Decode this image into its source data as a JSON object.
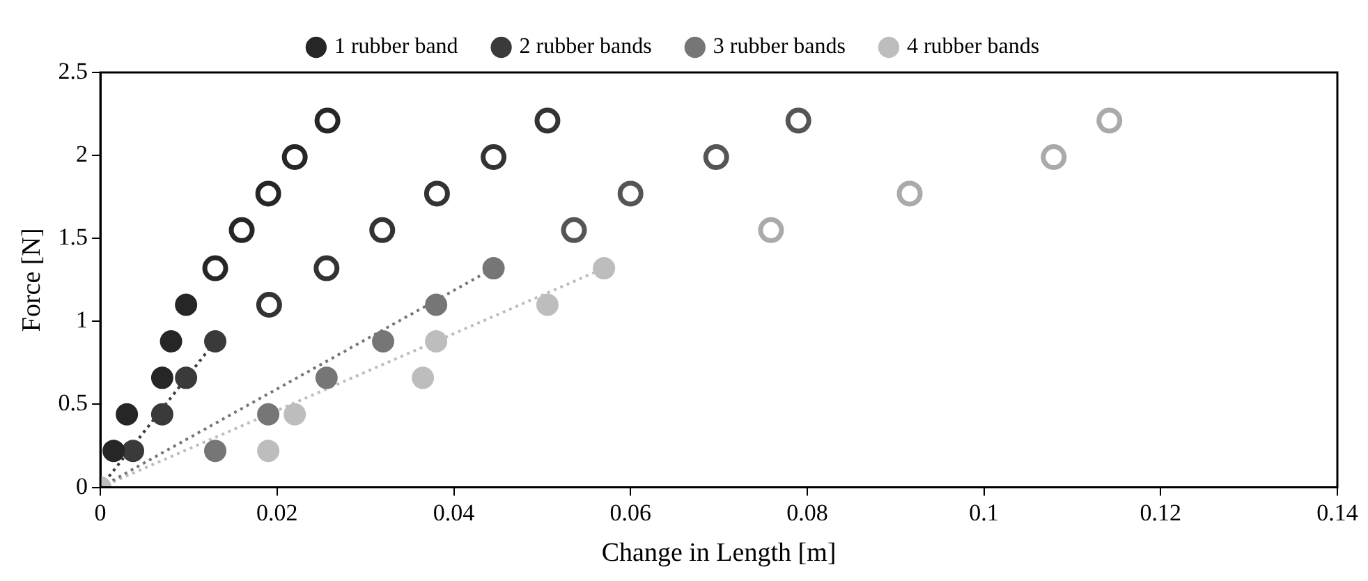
{
  "chart_data": {
    "type": "scatter",
    "xlabel": "Change in Length [m]",
    "ylabel": "Force [N]",
    "xlim": [
      0,
      0.14
    ],
    "ylim": [
      0,
      2.5
    ],
    "xticks": [
      0,
      0.02,
      0.04,
      0.06,
      0.08,
      0.1,
      0.12,
      0.14
    ],
    "yticks": [
      0,
      0.5,
      1,
      1.5,
      2,
      2.5
    ],
    "grid": false,
    "legend": "top",
    "marker": "circle",
    "series": [
      {
        "name": "1 rubber band",
        "color": "#262626",
        "x": [
          0.0015,
          0.003,
          0.007,
          0.008,
          0.0097
        ],
        "values": [
          0.22,
          0.44,
          0.66,
          0.88,
          1.1
        ]
      },
      {
        "name": "2 rubber bands",
        "color": "#3a3a3a",
        "x": [
          0.0037,
          0.007,
          0.0097,
          0.013
        ],
        "values": [
          0.22,
          0.44,
          0.66,
          0.88
        ]
      },
      {
        "name": "3 rubber bands",
        "color": "#767676",
        "x": [
          0.013,
          0.019,
          0.0256,
          0.032,
          0.038,
          0.0445
        ],
        "values": [
          0.22,
          0.44,
          0.66,
          0.88,
          1.1,
          1.32
        ]
      },
      {
        "name": "4 rubber bands",
        "color": "#bdbdbd",
        "x": [
          0,
          0.019,
          0.022,
          0.0365,
          0.038,
          0.0506,
          0.057
        ],
        "values": [
          0,
          0.22,
          0.44,
          0.66,
          0.88,
          1.1,
          1.32
        ]
      },
      {
        "color": "#262626",
        "marker": "circle_open",
        "x": [
          0.013,
          0.016,
          0.019,
          0.022,
          0.0257
        ],
        "values": [
          1.32,
          1.55,
          1.77,
          1.99,
          2.21
        ]
      },
      {
        "color": "#333333",
        "marker": "circle_open",
        "x": [
          0.0191,
          0.0256,
          0.0319,
          0.0381,
          0.0445,
          0.0506
        ],
        "values": [
          1.1,
          1.32,
          1.55,
          1.77,
          1.99,
          2.21
        ]
      },
      {
        "color": "#555555",
        "marker": "circle_open",
        "x": [
          0.0536,
          0.06,
          0.0697,
          0.079
        ],
        "values": [
          1.55,
          1.77,
          1.99,
          2.21
        ]
      },
      {
        "color": "#aaaaaa",
        "marker": "circle_open",
        "x": [
          0.0759,
          0.0916,
          0.1079,
          0.1142
        ],
        "values": [
          1.55,
          1.77,
          1.99,
          2.21
        ]
      },
      {
        "type": "line",
        "color": "#3a3a3a",
        "line_style": "dotted",
        "marker": "none",
        "x": [
          0,
          0.013
        ],
        "values": [
          0,
          0.88
        ]
      },
      {
        "type": "line",
        "color": "#767676",
        "line_style": "dotted",
        "marker": "none",
        "x": [
          0,
          0.0445
        ],
        "values": [
          0,
          1.32
        ]
      },
      {
        "type": "line",
        "color": "#bdbdbd",
        "line_style": "dotted",
        "marker": "none",
        "x": [
          0,
          0.057
        ],
        "values": [
          0,
          1.32
        ]
      }
    ]
  }
}
